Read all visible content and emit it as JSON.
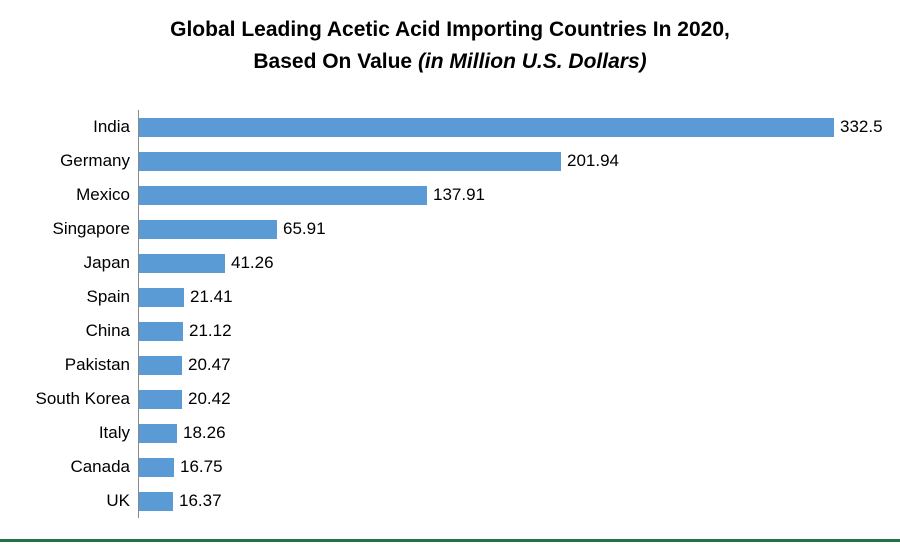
{
  "title": {
    "line1": "Global Leading Acetic Acid Importing Countries In 2020,",
    "line2_normal": "Based On Value ",
    "line2_italic": "(in Million U.S. Dollars)"
  },
  "colors": {
    "bar": "#5b9bd5",
    "axis": "#898989",
    "bottom_rule": "#217346",
    "text": "#000000"
  },
  "chart_data": {
    "type": "bar",
    "orientation": "horizontal",
    "title": "Global Leading Acetic Acid Importing Countries In 2020, Based On Value (in Million U.S. Dollars)",
    "categories": [
      "India",
      "Germany",
      "Mexico",
      "Singapore",
      "Japan",
      "Spain",
      "China",
      "Pakistan",
      "South Korea",
      "Italy",
      "Canada",
      "UK"
    ],
    "values": [
      332.5,
      201.94,
      137.91,
      65.91,
      41.26,
      21.41,
      21.12,
      20.47,
      20.42,
      18.26,
      16.75,
      16.37
    ],
    "value_labels": [
      "332.5",
      "201.94",
      "137.91",
      "65.91",
      "41.26",
      "21.41",
      "21.12",
      "20.47",
      "20.42",
      "18.26",
      "16.75",
      "16.37"
    ],
    "xlabel": "",
    "ylabel": "",
    "xlim": [
      0,
      332.5
    ],
    "grid": false,
    "legend": false,
    "data_labels": true
  }
}
